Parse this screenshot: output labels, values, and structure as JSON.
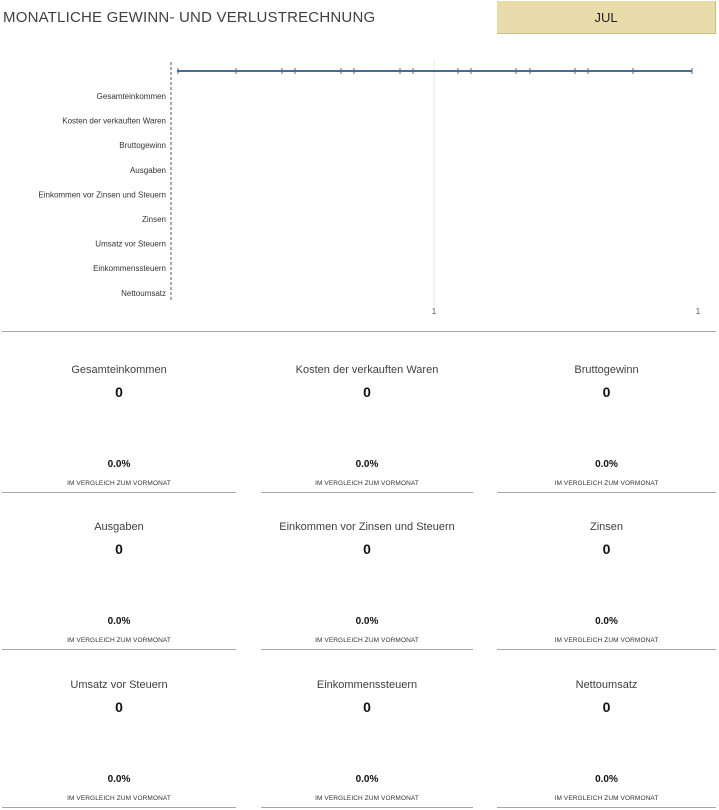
{
  "header": {
    "title": "MONATLICHE GEWINN- UND VERLUSTRECHNUNG",
    "month": "JUL"
  },
  "chart_data": {
    "type": "bar",
    "orientation": "horizontal",
    "categories": [
      "Gesamteinkommen",
      "Kosten der verkauften Waren",
      "Bruttogewinn",
      "Ausgaben",
      "Einkommen vor Zinsen und Steuern",
      "Zinsen",
      "Umsatz vor Steuern",
      "Einkommenssteuern",
      "Nettoumsatz"
    ],
    "values": [
      0,
      0,
      0,
      0,
      0,
      0,
      0,
      0,
      0
    ],
    "x_tick_labels": [
      "1",
      "1"
    ],
    "line_color": "#4a6a94",
    "grid": true
  },
  "kpi_common": {
    "comparison_label": "IM VERGLEICH ZUM VORMONAT"
  },
  "kpis": [
    {
      "name": "Gesamteinkommen",
      "value": "0",
      "change": "0.0%"
    },
    {
      "name": "Kosten der verkauften Waren",
      "value": "0",
      "change": "0.0%"
    },
    {
      "name": "Bruttogewinn",
      "value": "0",
      "change": "0.0%"
    },
    {
      "name": "Ausgaben",
      "value": "0",
      "change": "0.0%"
    },
    {
      "name": "Einkommen vor Zinsen und Steuern",
      "value": "0",
      "change": "0.0%"
    },
    {
      "name": "Zinsen",
      "value": "0",
      "change": "0.0%"
    },
    {
      "name": "Umsatz vor Steuern",
      "value": "0",
      "change": "0.0%"
    },
    {
      "name": "Einkommenssteuern",
      "value": "0",
      "change": "0.0%"
    },
    {
      "name": "Nettoumsatz",
      "value": "0",
      "change": "0.0%"
    }
  ]
}
